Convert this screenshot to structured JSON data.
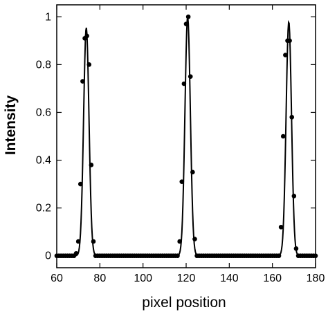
{
  "chart_data": {
    "type": "line",
    "title": "",
    "xlabel": "pixel position",
    "ylabel": "Intensity",
    "xlim": [
      60,
      180
    ],
    "ylim": [
      -0.05,
      1.05
    ],
    "xticks": [
      60,
      80,
      100,
      120,
      140,
      160,
      180
    ],
    "yticks": [
      0,
      0.2,
      0.4,
      0.6,
      0.8,
      1
    ],
    "ytick_labels": [
      "0",
      "0.2",
      "0.4",
      "0.6",
      "0.8",
      "1"
    ],
    "grid": false,
    "series": [
      {
        "kind": "fit-line",
        "peaks": [
          {
            "center": 73.7,
            "amplitude": 0.955,
            "sigma": 1.25
          },
          {
            "center": 120.7,
            "amplitude": 1.0,
            "sigma": 1.25
          },
          {
            "center": 167.6,
            "amplitude": 0.98,
            "sigma": 1.25
          }
        ],
        "x_start": 60,
        "x_end": 180,
        "x_step": 0.25
      },
      {
        "kind": "points",
        "x_start": 60,
        "x_end": 180,
        "nonzero": {
          "69": 0.01,
          "70": 0.06,
          "71": 0.3,
          "72": 0.73,
          "73": 0.91,
          "74": 0.92,
          "75": 0.8,
          "76": 0.38,
          "77": 0.06,
          "117": 0.06,
          "118": 0.31,
          "119": 0.72,
          "120": 0.97,
          "121": 1.0,
          "122": 0.75,
          "123": 0.35,
          "124": 0.07,
          "164": 0.12,
          "165": 0.5,
          "166": 0.84,
          "167": 0.9,
          "168": 0.9,
          "169": 0.58,
          "170": 0.25,
          "171": 0.03
        }
      }
    ]
  }
}
